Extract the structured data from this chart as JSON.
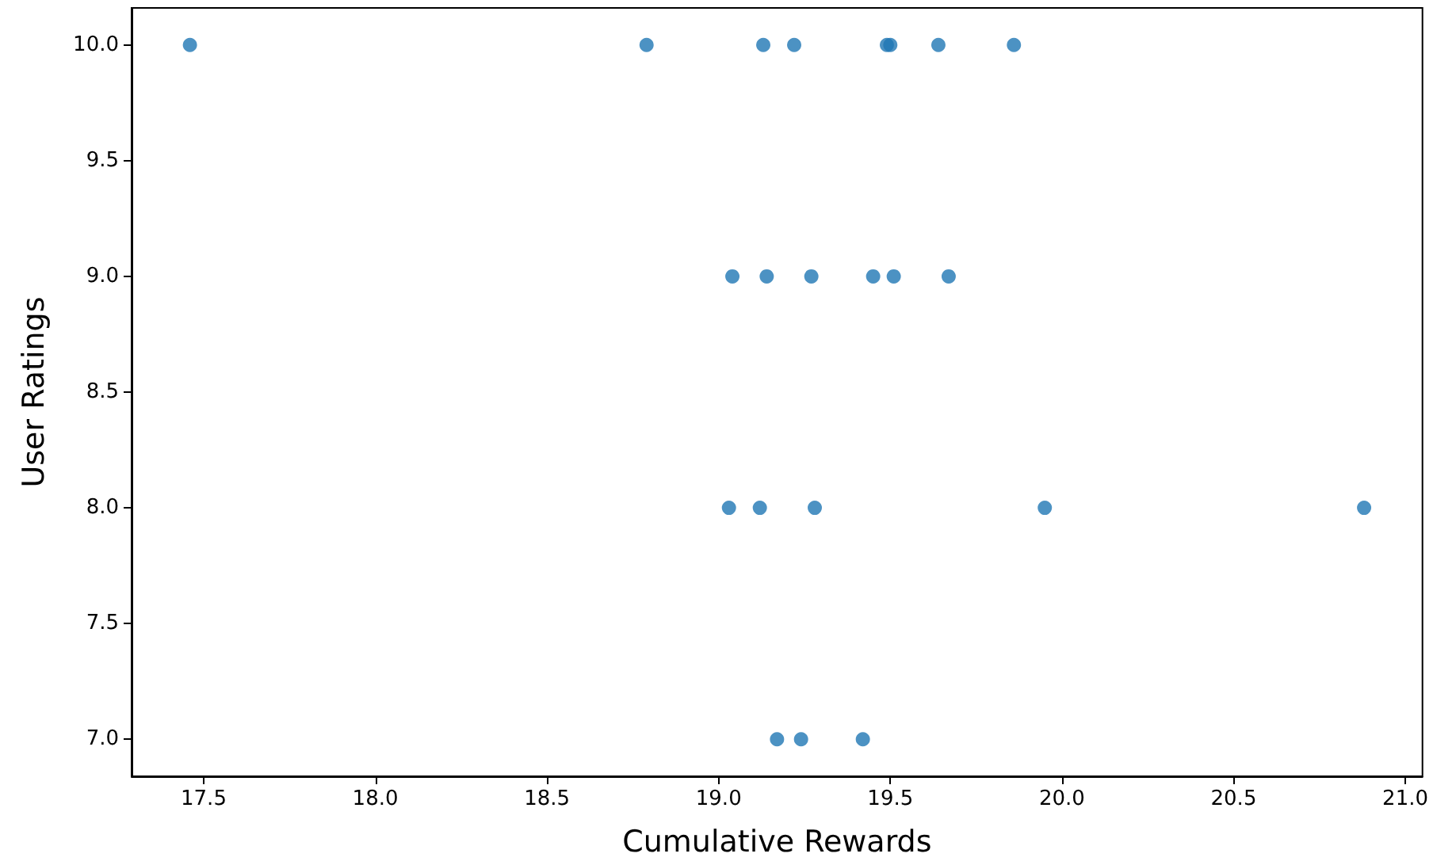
{
  "chart_data": {
    "type": "scatter",
    "xlabel": "Cumulative Rewards",
    "ylabel": "User Ratings",
    "x": [
      17.46,
      18.79,
      19.13,
      19.22,
      19.49,
      19.5,
      19.64,
      19.86,
      19.04,
      19.14,
      19.27,
      19.45,
      19.51,
      19.67,
      19.03,
      19.12,
      19.28,
      19.95,
      20.88,
      19.17,
      19.24,
      19.42
    ],
    "series": [
      {
        "color": "#1f77b4",
        "values": [
          10,
          10,
          10,
          10,
          10,
          10,
          10,
          10,
          9,
          9,
          9,
          9,
          9,
          9,
          8,
          8,
          8,
          8,
          8,
          7,
          7,
          7
        ]
      }
    ],
    "xlim": [
      17.29,
      21.05
    ],
    "ylim": [
      6.84,
      10.16
    ],
    "xticks": [
      {
        "value": 17.5,
        "label": "17.5"
      },
      {
        "value": 18,
        "label": "18.0"
      },
      {
        "value": 18.5,
        "label": "18.5"
      },
      {
        "value": 19,
        "label": "19.0"
      },
      {
        "value": 19.5,
        "label": "19.5"
      },
      {
        "value": 20,
        "label": "20.0"
      },
      {
        "value": 20.5,
        "label": "20.5"
      },
      {
        "value": 21,
        "label": "21.0"
      }
    ],
    "yticks": [
      {
        "value": 7,
        "label": "7.0"
      },
      {
        "value": 7.5,
        "label": "7.5"
      },
      {
        "value": 8,
        "label": "8.0"
      },
      {
        "value": 8.5,
        "label": "8.5"
      },
      {
        "value": 9,
        "label": "9.0"
      },
      {
        "value": 9.5,
        "label": "9.5"
      },
      {
        "value": 10,
        "label": "10.0"
      }
    ],
    "grid": false,
    "marker": "circle"
  }
}
